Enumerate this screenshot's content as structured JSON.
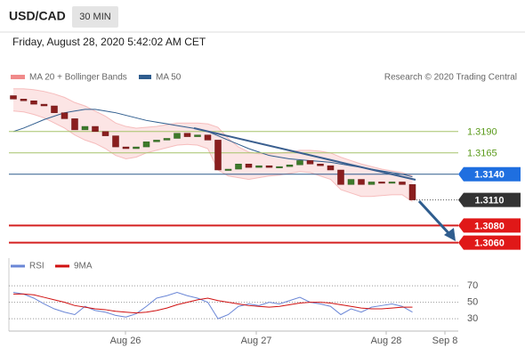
{
  "header": {
    "symbol": "USD/CAD",
    "timeframe": "30 MIN",
    "datetime": "Friday, August 28, 2020 5:42:02 AM CET"
  },
  "chart_data": [
    {
      "type": "candlestick",
      "credit": "Research © 2020 Trading Central",
      "series": [
        {
          "name": "MA 20 + Bollinger Bands",
          "color": "#f08a8a",
          "upper": [
            1.324,
            1.324,
            1.3239,
            1.3237,
            1.3234,
            1.323,
            1.3224,
            1.322,
            1.3214,
            1.3208,
            1.32,
            1.3196,
            1.3194,
            1.3195,
            1.3196,
            1.3198,
            1.32,
            1.32,
            1.32,
            1.3199,
            1.3195,
            1.3182,
            1.3172,
            1.3166,
            1.3164,
            1.3164,
            1.3165,
            1.3166,
            1.3168,
            1.3168,
            1.3167,
            1.3165,
            1.316,
            1.3156,
            1.3152,
            1.3149,
            1.3146,
            1.3144,
            1.3142,
            1.3138
          ],
          "lower": [
            1.3214,
            1.3213,
            1.321,
            1.3206,
            1.32,
            1.3194,
            1.3186,
            1.318,
            1.3176,
            1.317,
            1.3162,
            1.3158,
            1.316,
            1.3165,
            1.3168,
            1.3171,
            1.3174,
            1.3175,
            1.3174,
            1.317,
            1.3145,
            1.3138,
            1.3136,
            1.3134,
            1.3136,
            1.3138,
            1.3139,
            1.3141,
            1.3143,
            1.3142,
            1.3138,
            1.3134,
            1.3122,
            1.3118,
            1.3114,
            1.3114,
            1.3115,
            1.3116,
            1.3116,
            1.3108
          ]
        },
        {
          "name": "MA 50",
          "color": "#2f5d8e",
          "values": [
            1.319,
            1.3194,
            1.3199,
            1.3204,
            1.3208,
            1.3212,
            1.3214,
            1.3216,
            1.3216,
            1.3214,
            1.3212,
            1.3209,
            1.3206,
            1.3203,
            1.3201,
            1.3199,
            1.3197,
            1.3195,
            1.3193,
            1.319,
            1.3185,
            1.318,
            1.3175,
            1.317,
            1.3166,
            1.3162,
            1.316,
            1.3158,
            1.3157,
            1.3156,
            1.3155,
            1.3154,
            1.3152,
            1.315,
            1.3148,
            1.3146,
            1.3144,
            1.3142,
            1.314,
            1.3137
          ]
        }
      ],
      "open": [
        1.3232,
        1.3228,
        1.3226,
        1.3222,
        1.322,
        1.3212,
        1.3205,
        1.3192,
        1.3196,
        1.319,
        1.3185,
        1.3172,
        1.317,
        1.3172,
        1.3178,
        1.318,
        1.3182,
        1.3188,
        1.3184,
        1.3186,
        1.318,
        1.3145,
        1.3146,
        1.3152,
        1.3148,
        1.315,
        1.3148,
        1.3149,
        1.3151,
        1.3156,
        1.3152,
        1.315,
        1.3145,
        1.3128,
        1.3134,
        1.3128,
        1.3131,
        1.313,
        1.3131,
        1.3128
      ],
      "close": [
        1.3228,
        1.3226,
        1.3222,
        1.322,
        1.3212,
        1.3205,
        1.3192,
        1.3196,
        1.319,
        1.3185,
        1.3172,
        1.317,
        1.3172,
        1.3178,
        1.318,
        1.3182,
        1.3188,
        1.3184,
        1.3186,
        1.318,
        1.3145,
        1.3146,
        1.3152,
        1.3148,
        1.315,
        1.3148,
        1.3149,
        1.3151,
        1.3156,
        1.3152,
        1.315,
        1.3145,
        1.3128,
        1.3134,
        1.3128,
        1.3131,
        1.313,
        1.3131,
        1.3128,
        1.311
      ],
      "ylim": [
        1.3045,
        1.3245
      ],
      "yticks": [
        {
          "value": 1.319,
          "label": "1.3190"
        },
        {
          "value": 1.3165,
          "label": "1.3165"
        },
        {
          "value": 1.314,
          "label": "1.3140"
        },
        {
          "value": 1.311,
          "label": "1.3110"
        },
        {
          "value": 1.308,
          "label": "1.3080"
        },
        {
          "value": 1.306,
          "label": "1.3060"
        }
      ],
      "ytick_styles": [
        "green",
        "green",
        "blue",
        "dark",
        "red",
        "red"
      ]
    },
    {
      "type": "line",
      "series": [
        {
          "name": "RSI",
          "color": "#6a86d6",
          "values": [
            62,
            60,
            55,
            48,
            42,
            38,
            35,
            45,
            40,
            38,
            34,
            32,
            36,
            45,
            55,
            58,
            62,
            58,
            55,
            50,
            30,
            35,
            45,
            48,
            46,
            50,
            48,
            52,
            56,
            50,
            48,
            45,
            35,
            42,
            38,
            44,
            46,
            48,
            45,
            38
          ]
        },
        {
          "name": "9MA",
          "color": "#d01010",
          "values": [
            60,
            60,
            59,
            56,
            53,
            50,
            46,
            44,
            42,
            41,
            39,
            38,
            37,
            38,
            40,
            43,
            47,
            50,
            53,
            55,
            52,
            50,
            48,
            46,
            45,
            44,
            45,
            47,
            49,
            50,
            50,
            49,
            47,
            45,
            43,
            42,
            42,
            43,
            44,
            44
          ]
        }
      ],
      "ylim": [
        15,
        82
      ],
      "yticks": [
        70,
        50,
        30
      ],
      "x_labels": [
        "Aug 26",
        "Aug 27",
        "Aug 28",
        "Sep 8"
      ]
    }
  ]
}
